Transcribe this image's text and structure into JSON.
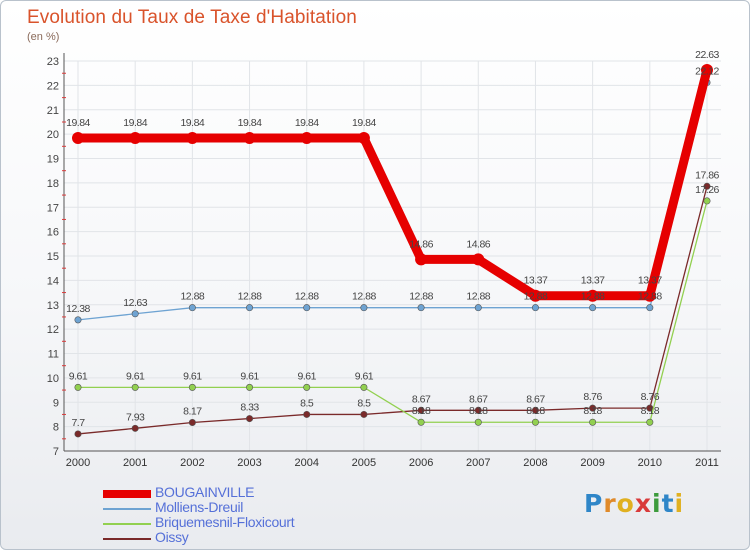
{
  "title": "Evolution du Taux de Taxe d'Habitation",
  "subtitle": "(en %)",
  "brand": {
    "name": "Proxiti",
    "letters": [
      {
        "ch": "P",
        "color": "#2f86c8"
      },
      {
        "ch": "r",
        "color": "#e08a2a"
      },
      {
        "ch": "o",
        "color": "#e0b020"
      },
      {
        "ch": "x",
        "color": "#d93a3a"
      },
      {
        "ch": "i",
        "color": "#3c9b3c"
      },
      {
        "ch": "t",
        "color": "#2f86c8"
      },
      {
        "ch": "i",
        "color": "#e0b020"
      }
    ]
  },
  "chart_data": {
    "type": "line",
    "categories": [
      "2000",
      "2001",
      "2002",
      "2003",
      "2004",
      "2005",
      "2006",
      "2007",
      "2008",
      "2009",
      "2010",
      "2011"
    ],
    "ylim": [
      7,
      23
    ],
    "yticks": [
      7,
      8,
      9,
      10,
      11,
      12,
      13,
      14,
      15,
      16,
      17,
      18,
      19,
      20,
      21,
      22,
      23
    ],
    "grid": true,
    "legend_position": "bottom-left",
    "series": [
      {
        "name": "BOUGAINVILLE",
        "color": "#e60000",
        "values": [
          19.84,
          19.84,
          19.84,
          19.84,
          19.84,
          19.84,
          14.86,
          14.86,
          13.37,
          13.37,
          13.37,
          22.63
        ],
        "labels": [
          "19.84",
          "19.84",
          "19.84",
          "19.84",
          "19.84",
          "19.84",
          "14.86",
          "14.86",
          "13.37",
          "13.37",
          "13.37",
          "22.63"
        ]
      },
      {
        "name": "Molliens-Dreuil",
        "color": "#6ea3d2",
        "values": [
          12.38,
          12.63,
          12.88,
          12.88,
          12.88,
          12.88,
          12.88,
          12.88,
          12.88,
          12.88,
          12.88,
          22.12
        ],
        "labels": [
          "12.38",
          "12.63",
          "12.88",
          "12.88",
          "12.88",
          "12.88",
          "12.88",
          "12.88",
          "12.88",
          "12.88",
          "12.88",
          "22.12"
        ]
      },
      {
        "name": "Briquemesnil-Floxicourt",
        "color": "#92d050",
        "values": [
          9.61,
          9.61,
          9.61,
          9.61,
          9.61,
          9.61,
          8.18,
          8.18,
          8.18,
          8.18,
          8.18,
          17.26
        ],
        "labels": [
          "9.61",
          "9.61",
          "9.61",
          "9.61",
          "9.61",
          "9.61",
          "8.18",
          "8.18",
          "8.18",
          "8.18",
          "8.18",
          "17.26"
        ]
      },
      {
        "name": "Oissy",
        "color": "#7a2a2a",
        "values": [
          7.7,
          7.93,
          8.17,
          8.33,
          8.5,
          8.5,
          8.67,
          8.67,
          8.67,
          8.76,
          8.76,
          17.86
        ],
        "labels": [
          "7.7",
          "7.93",
          "8.17",
          "8.33",
          "8.5",
          "8.5",
          "8.67",
          "8.67",
          "8.67",
          "8.76",
          "8.76",
          "17.86"
        ]
      }
    ]
  }
}
